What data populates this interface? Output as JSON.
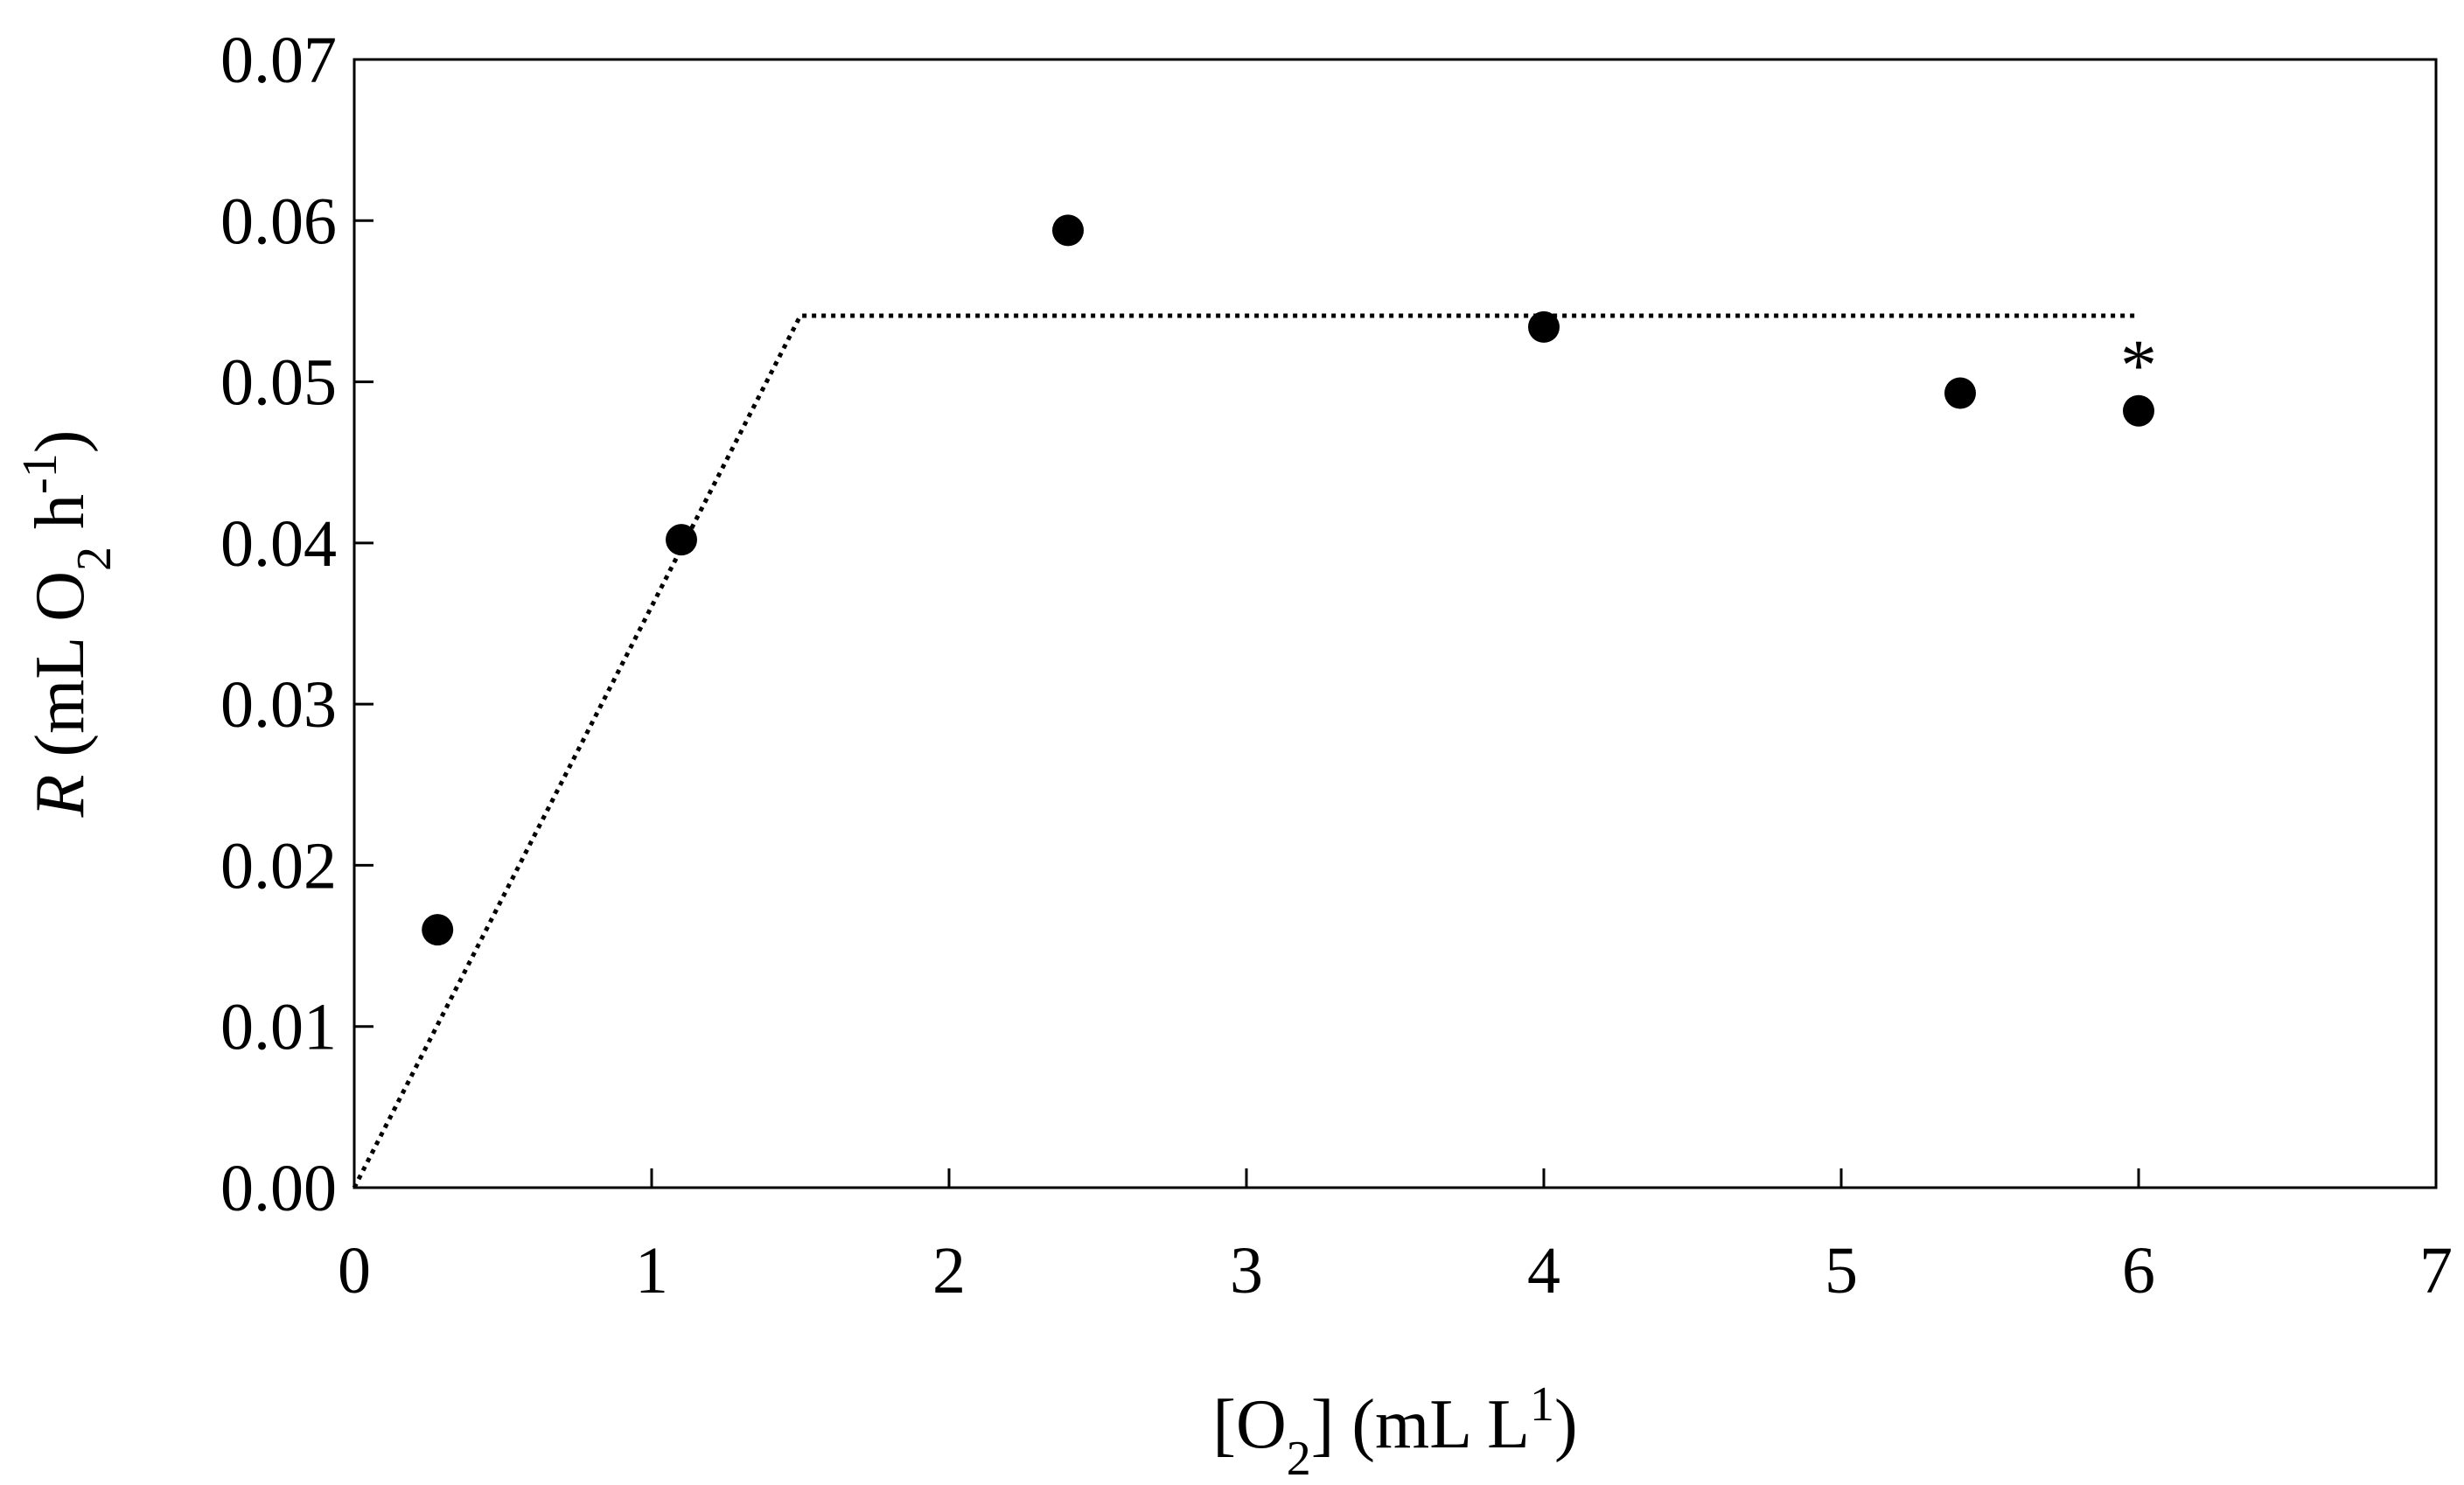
{
  "chart_data": {
    "type": "scatter",
    "title": "",
    "xlabel": {
      "open": "[O",
      "sub": "2",
      "close": "] (mL L",
      "sup": "1",
      "end": ")"
    },
    "ylabel": {
      "italic": "R",
      "open": " (mL O",
      "sub": "2",
      "mid": " h",
      "sup": "-1",
      "end": ")"
    },
    "xlim": [
      0,
      7
    ],
    "ylim": [
      0,
      0.07
    ],
    "xticks": [
      "0",
      "1",
      "2",
      "3",
      "4",
      "5",
      "6",
      "7"
    ],
    "yticks": [
      "0.00",
      "0.01",
      "0.02",
      "0.03",
      "0.04",
      "0.05",
      "0.06",
      "0.07"
    ],
    "grid": false,
    "series": [
      {
        "marker": "filled-circle",
        "color": "#000000",
        "x": [
          0.28,
          1.1,
          2.4,
          4.0,
          5.4,
          6.0
        ],
        "y": [
          0.016,
          0.0402,
          0.0594,
          0.0534,
          0.0493,
          0.0482
        ]
      }
    ],
    "fit_line": {
      "style": "dotted",
      "color": "#000000",
      "x": [
        0,
        1.5,
        6.0
      ],
      "y": [
        0,
        0.0541,
        0.0541
      ]
    },
    "annotations": [
      {
        "text": "*",
        "x": 6.0,
        "y": 0.0482
      }
    ]
  }
}
